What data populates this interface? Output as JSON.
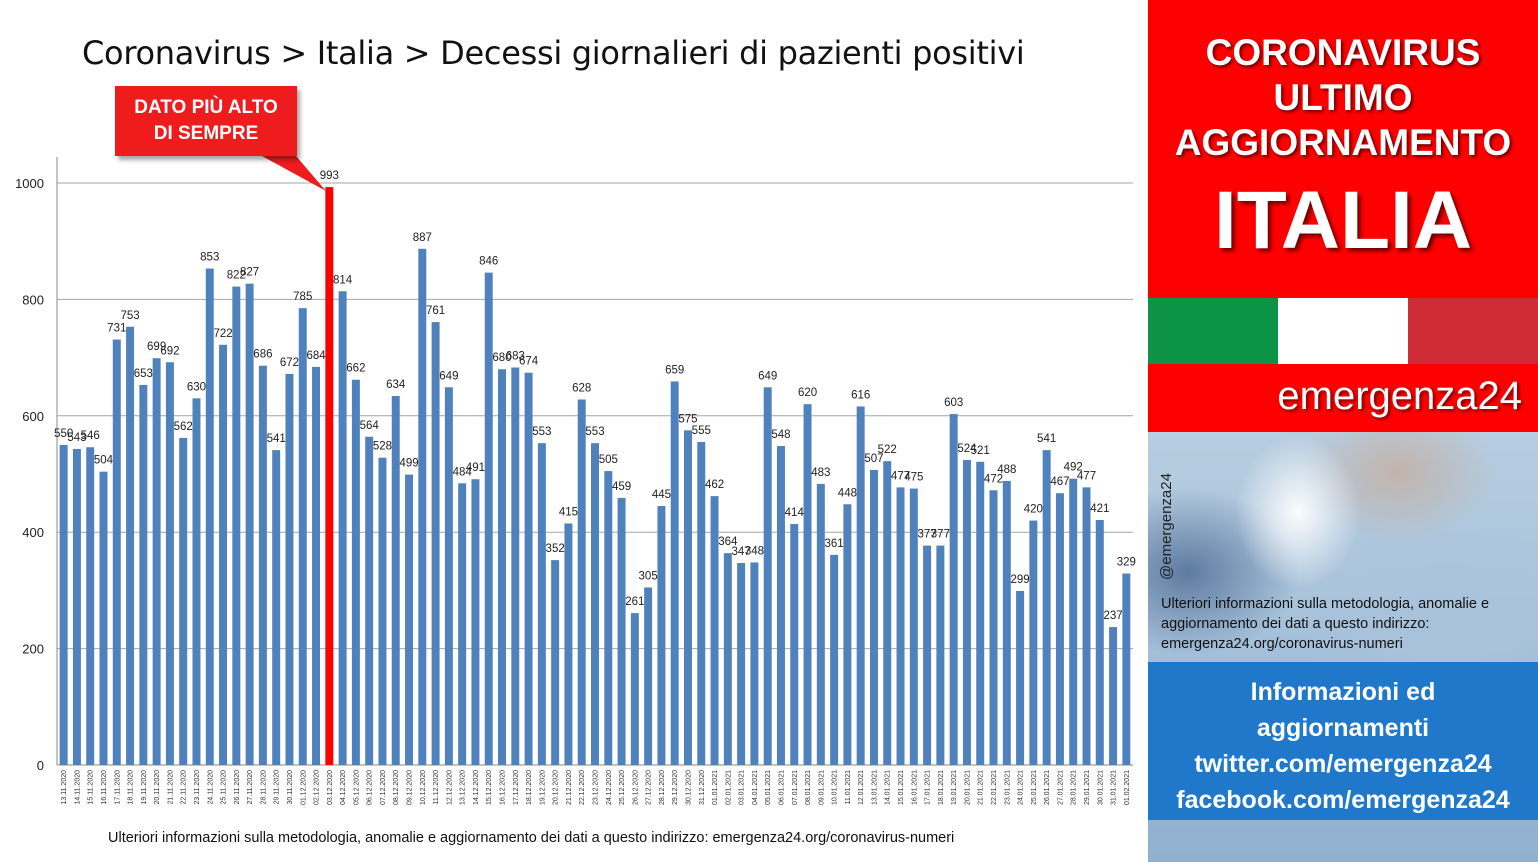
{
  "title": "Coronavirus > Italia > Decessi giornalieri di pazienti positivi",
  "callout": "DATO PIÙ ALTO\nDI SEMPRE",
  "footer_note": "Ulteriori informazioni sulla metodologia, anomalie e aggiornamento dei dati a questo indirizzo: emergenza24.org/coronavirus-numeri",
  "panel": {
    "heading": "CORONAVIRUS\nULTIMO\nAGGIORNAMENTO",
    "country": "ITALIA",
    "brand": "emergenza24",
    "handle": "@emergenza24",
    "info": "Ulteriori informazioni sulla metodologia, anomalie e aggiornamento dei dati a questo indirizzo: emergenza24.org/coronavirus-numeri",
    "contact_heading": "Informazioni ed\naggiornamenti",
    "twitter": "twitter.com/emergenza24",
    "facebook": "facebook.com/emergenza24",
    "colors": {
      "red": "#ff0000",
      "flag_green": "#0c9345",
      "flag_white": "#ffffff",
      "flag_red": "#cf2b37",
      "contact_blue": "#1f78c9"
    }
  },
  "chart_data": {
    "type": "bar",
    "ylim": [
      0,
      1000
    ],
    "yticks": [
      0,
      200,
      400,
      600,
      800,
      1000
    ],
    "grid": true,
    "bar_color": "#4f81bd",
    "highlight_color": "#ff0000",
    "highlight_category": "03.12.2020",
    "categories": [
      "13.11.2020",
      "14.11.2020",
      "15.11.2020",
      "16.11.2020",
      "17.11.2020",
      "18.11.2020",
      "19.11.2020",
      "20.11.2020",
      "21.11.2020",
      "22.11.2020",
      "23.11.2020",
      "24.11.2020",
      "25.11.2020",
      "26.11.2020",
      "27.11.2020",
      "28.11.2020",
      "29.11.2020",
      "30.11.2020",
      "01.12.2020",
      "02.12.2020",
      "03.12.2020",
      "04.12.2020",
      "05.12.2020",
      "06.12.2020",
      "07.12.2020",
      "08.12.2020",
      "09.12.2020",
      "10.12.2020",
      "11.12.2020",
      "12.12.2020",
      "13.12.2020",
      "14.12.2020",
      "15.12.2020",
      "16.12.2020",
      "17.12.2020",
      "18.12.2020",
      "19.12.2020",
      "20.12.2020",
      "21.12.2020",
      "22.12.2020",
      "23.12.2020",
      "24.12.2020",
      "25.12.2020",
      "26.12.2020",
      "27.12.2020",
      "28.12.2020",
      "29.12.2020",
      "30.12.2020",
      "31.12.2020",
      "01.01.2021",
      "02.01.2021",
      "03.01.2021",
      "04.01.2021",
      "05.01.2021",
      "06.01.2021",
      "07.01.2021",
      "08.01.2021",
      "09.01.2021",
      "10.01.2021",
      "11.01.2021",
      "12.01.2021",
      "13.01.2021",
      "14.01.2021",
      "15.01.2021",
      "16.01.2021",
      "17.01.2021",
      "18.01.2021",
      "19.01.2021",
      "20.01.2021",
      "21.01.2021",
      "22.01.2021",
      "23.01.2021",
      "24.01.2021",
      "25.01.2021",
      "26.01.2021",
      "27.01.2021",
      "28.01.2021",
      "29.01.2021",
      "30.01.2021",
      "31.01.2021",
      "01.02.2021"
    ],
    "values": [
      550,
      543,
      546,
      504,
      731,
      753,
      653,
      699,
      692,
      562,
      630,
      853,
      722,
      822,
      827,
      686,
      541,
      672,
      785,
      684,
      993,
      814,
      662,
      564,
      528,
      634,
      499,
      887,
      761,
      649,
      484,
      491,
      846,
      680,
      683,
      674,
      553,
      352,
      415,
      628,
      553,
      505,
      459,
      261,
      305,
      445,
      659,
      575,
      555,
      462,
      364,
      347,
      348,
      649,
      548,
      414,
      620,
      483,
      361,
      448,
      616,
      507,
      522,
      477,
      475,
      377,
      377,
      603,
      524,
      521,
      472,
      488,
      299,
      420,
      541,
      467,
      492,
      477,
      421,
      237,
      329
    ]
  }
}
